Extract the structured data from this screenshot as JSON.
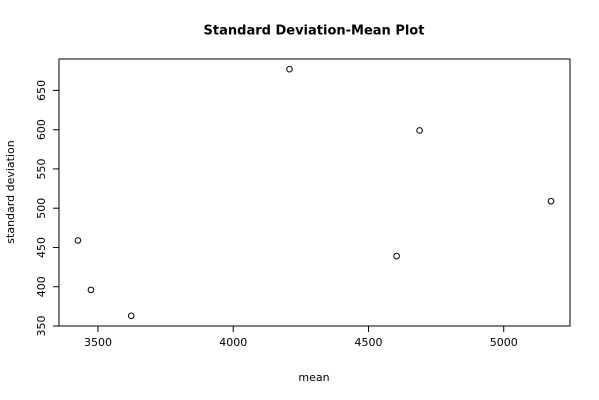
{
  "chart_data": {
    "type": "scatter",
    "title": "Standard Deviation-Mean Plot",
    "x_label": "mean",
    "y_label": "standard deviation",
    "x": [
      3426,
      3474,
      3623,
      4208,
      4604,
      4689,
      5175
    ],
    "values": [
      459,
      396,
      363,
      677,
      439,
      599,
      509
    ],
    "color": "#000000",
    "xlim": [
      3356,
      5245
    ],
    "xticks": [
      3500,
      4000,
      4500,
      5000
    ],
    "ylim": [
      350,
      690
    ],
    "yticks": [
      350,
      400,
      450,
      500,
      550,
      600,
      650
    ]
  }
}
